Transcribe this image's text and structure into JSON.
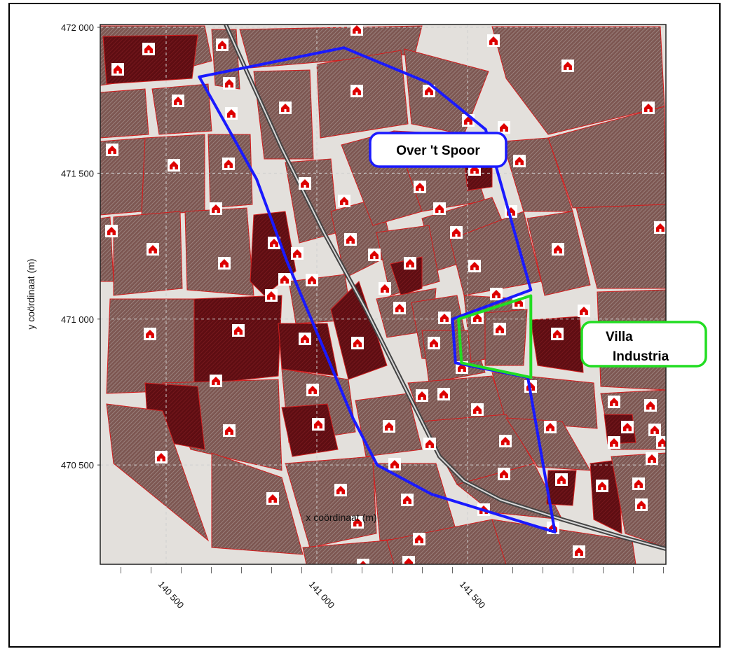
{
  "map": {
    "x_axis": {
      "label": "x coördinaat (m)",
      "ticks": [
        {
          "value": 140500,
          "label": "140 500"
        },
        {
          "value": 141000,
          "label": "141 000"
        },
        {
          "value": 141500,
          "label": "141 500"
        }
      ]
    },
    "y_axis": {
      "label": "y coördinaat (m)",
      "ticks": [
        {
          "value": 472000,
          "label": "472 000"
        },
        {
          "value": 471500,
          "label": "471 500"
        },
        {
          "value": 471000,
          "label": "471 000"
        },
        {
          "value": 470500,
          "label": "470 500"
        }
      ]
    },
    "x_range": [
      140300,
      142200
    ],
    "y_range": [
      470150,
      472000
    ],
    "grid": true,
    "areas": [
      {
        "name": "Over 't Spoor",
        "label": "Over 't Spoor",
        "boundary_color": "#1a1aff",
        "outline": [
          [
            140610,
            471830
          ],
          [
            141090,
            471930
          ],
          [
            141370,
            471810
          ],
          [
            141560,
            471650
          ],
          [
            141710,
            471100
          ],
          [
            141450,
            471000
          ],
          [
            141460,
            470850
          ],
          [
            141700,
            470800
          ],
          [
            141790,
            470270
          ],
          [
            141380,
            470400
          ],
          [
            141200,
            470500
          ],
          [
            141120,
            470660
          ],
          [
            140900,
            471200
          ],
          [
            140800,
            471480
          ]
        ]
      },
      {
        "name": "Villa Industria",
        "label": "Villa Industria",
        "boundary_color": "#22dd22",
        "outline": [
          [
            141470,
            471000
          ],
          [
            141710,
            471080
          ],
          [
            141710,
            470800
          ],
          [
            141480,
            470850
          ]
        ]
      }
    ],
    "colors": {
      "parcel_dark": "#6e0f14",
      "parcel_hatched": "#8a6a66",
      "background": "#e3e0dc",
      "house_icon": "#dd0000",
      "railway": "#555555"
    },
    "house_icon": "house-icon"
  }
}
